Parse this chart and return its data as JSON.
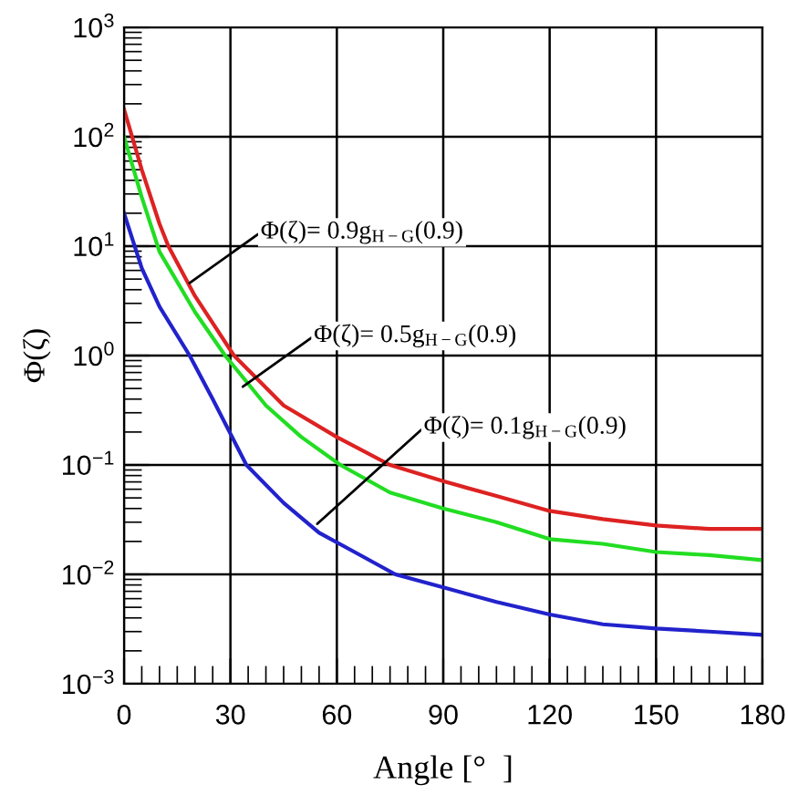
{
  "chart_data": {
    "type": "line",
    "xlabel": "Angle [°  ]",
    "ylabel": "Φ(ζ)",
    "log": "y",
    "grid": true,
    "marker": "none",
    "line_style": "solid",
    "xlim": [
      0,
      180
    ],
    "xticks": [
      0,
      30,
      60,
      90,
      120,
      150,
      180
    ],
    "ylim": [
      0.001,
      1000
    ],
    "yticks": [
      {
        "value": 0.001,
        "label": "10$^{−3}$"
      },
      {
        "value": 0.01,
        "label": "10$^{−2}$"
      },
      {
        "value": 0.1,
        "label": "10$^{−1}$"
      },
      {
        "value": 1,
        "label": "10$^{0}$"
      },
      {
        "value": 10,
        "label": "10$^{1}$"
      },
      {
        "value": 100,
        "label": "10$^{2}$"
      },
      {
        "value": 1000,
        "label": "10$^{3}$"
      }
    ],
    "series": [
      {
        "color": "#dd2222",
        "x": [
          0,
          5,
          10,
          12.5,
          20,
          31,
          45,
          60,
          75,
          90,
          105,
          120,
          135,
          150,
          165,
          180
        ],
        "values": [
          178,
          50,
          16,
          10,
          3.5,
          1.0,
          0.35,
          0.18,
          0.1,
          0.071,
          0.052,
          0.038,
          0.032,
          0.028,
          0.026,
          0.026
        ]
      },
      {
        "color": "#22dd22",
        "x": [
          0,
          5,
          10,
          20,
          28.5,
          40,
          50,
          61,
          75,
          90,
          105,
          120,
          135,
          150,
          165,
          180
        ],
        "values": [
          100,
          28,
          8.9,
          2.5,
          1.0,
          0.35,
          0.18,
          0.1,
          0.056,
          0.04,
          0.03,
          0.021,
          0.019,
          0.016,
          0.015,
          0.0135
        ]
      },
      {
        "color": "#2222cc",
        "x": [
          0,
          5,
          10,
          18.5,
          25,
          34.5,
          45,
          55,
          65,
          76.5,
          90,
          105,
          120,
          135,
          150,
          165,
          180
        ],
        "values": [
          20,
          6.3,
          2.8,
          1.0,
          0.4,
          0.1,
          0.045,
          0.024,
          0.016,
          0.01,
          0.0076,
          0.0056,
          0.0043,
          0.0035,
          0.0032,
          0.003,
          0.0028
        ]
      }
    ],
    "annotations": [
      {
        "text": "Φ(ζ)= 0.9g$_{H−G}$(0.9)",
        "x": 18.5,
        "y": 4.6
      },
      {
        "text": "Φ(ζ)= 0.5g$_{H−G}$(0.9)",
        "x": 33.5,
        "y": 0.52
      },
      {
        "text": "Φ(ζ)= 0.1g$_{H−G}$(0.9)",
        "x": 54.5,
        "y": 0.029
      }
    ]
  }
}
